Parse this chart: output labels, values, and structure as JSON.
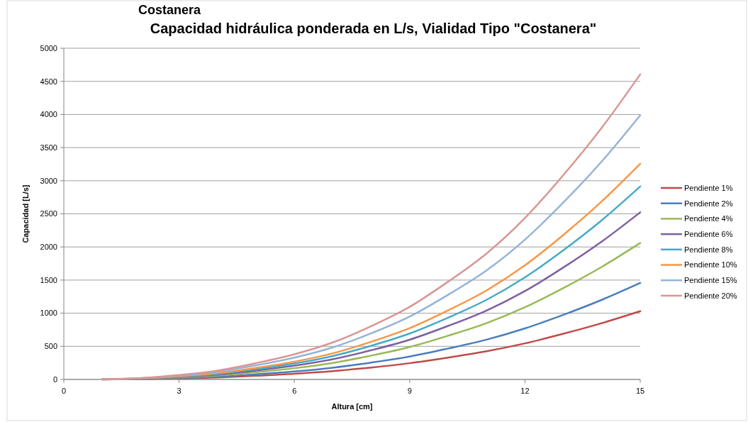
{
  "chart_data": {
    "type": "line",
    "title": "Capacidad hidráulica ponderada en L/s, Vialidad Tipo \"Costanera\"",
    "xlabel": "Altura [cm]",
    "ylabel": "Capacidad [L/s]",
    "annotations": [
      "Costanera"
    ],
    "x": [
      1,
      2,
      3,
      4,
      5,
      6,
      7,
      8,
      9,
      10,
      11,
      12,
      13,
      14,
      15
    ],
    "series": [
      {
        "name": "Pendiente 1%",
        "color": "#be4b48",
        "values": [
          1,
          5,
          15,
          30,
          55,
          85,
          125,
          180,
          245,
          330,
          425,
          545,
          690,
          850,
          1030
        ]
      },
      {
        "name": "Pendiente 2%",
        "color": "#4a7ebb",
        "values": [
          1,
          7,
          21,
          42,
          78,
          120,
          177,
          255,
          346,
          467,
          601,
          771,
          976,
          1202,
          1457
        ]
      },
      {
        "name": "Pendiente 4%",
        "color": "#98b954",
        "values": [
          2,
          10,
          30,
          60,
          110,
          170,
          250,
          360,
          490,
          660,
          850,
          1090,
          1380,
          1700,
          2060
        ]
      },
      {
        "name": "Pendiente 6%",
        "color": "#7d60a0",
        "values": [
          2,
          12,
          37,
          73,
          135,
          208,
          306,
          441,
          600,
          808,
          1041,
          1335,
          1690,
          2082,
          2523
        ]
      },
      {
        "name": "Pendiente 8%",
        "color": "#46aac5",
        "values": [
          3,
          14,
          42,
          85,
          156,
          240,
          354,
          509,
          693,
          933,
          1202,
          1541,
          1951,
          2404,
          2913
        ]
      },
      {
        "name": "Pendiente 10%",
        "color": "#f79646",
        "values": [
          3,
          16,
          47,
          95,
          174,
          269,
          395,
          569,
          775,
          1043,
          1344,
          1723,
          2182,
          2688,
          3257
        ]
      },
      {
        "name": "Pendiente 15%",
        "color": "#95b3d7",
        "values": [
          4,
          19,
          58,
          116,
          213,
          329,
          484,
          697,
          949,
          1278,
          1646,
          2111,
          2672,
          3292,
          3989
        ]
      },
      {
        "name": "Pendiente 20%",
        "color": "#d99694",
        "values": [
          4,
          22,
          67,
          134,
          246,
          380,
          559,
          805,
          1096,
          1476,
          1901,
          2437,
          3086,
          3801,
          4606
        ]
      }
    ],
    "xlim": [
      0,
      15
    ],
    "xticks": [
      0,
      3,
      6,
      9,
      12,
      15
    ],
    "ylim": [
      0,
      5000
    ],
    "yticks": [
      0,
      500,
      1000,
      1500,
      2000,
      2500,
      3000,
      3500,
      4000,
      4500,
      5000
    ],
    "grid": "y",
    "legend": "right",
    "marker": "none",
    "line_style": "solid"
  }
}
